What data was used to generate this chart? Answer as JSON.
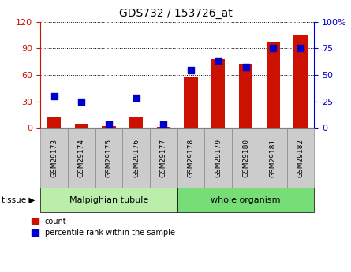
{
  "title": "GDS732 / 153726_at",
  "samples": [
    "GSM29173",
    "GSM29174",
    "GSM29175",
    "GSM29176",
    "GSM29177",
    "GSM29178",
    "GSM29179",
    "GSM29180",
    "GSM29181",
    "GSM29182"
  ],
  "counts": [
    12,
    5,
    2,
    13,
    1,
    57,
    78,
    72,
    97,
    105
  ],
  "percentiles": [
    30,
    25,
    3,
    28,
    3,
    54,
    63,
    57,
    75,
    75
  ],
  "bar_color": "#cc1100",
  "dot_color": "#0000cc",
  "left_ylim": [
    0,
    120
  ],
  "right_ylim": [
    0,
    100
  ],
  "left_yticks": [
    0,
    30,
    60,
    90,
    120
  ],
  "right_yticks": [
    0,
    25,
    50,
    75,
    100
  ],
  "right_yticklabels": [
    "0",
    "25",
    "50",
    "75",
    "100%"
  ],
  "group1_label": "Malpighian tubule",
  "group2_label": "whole organism",
  "n_group1": 5,
  "n_group2": 5,
  "tissue_label": "tissue",
  "legend_count": "count",
  "legend_percentile": "percentile rank within the sample",
  "bar_width": 0.5,
  "dot_size": 30,
  "group1_color": "#bbeeaa",
  "group2_color": "#77dd77",
  "sample_box_color": "#cccccc",
  "sample_box_edge": "#888888"
}
